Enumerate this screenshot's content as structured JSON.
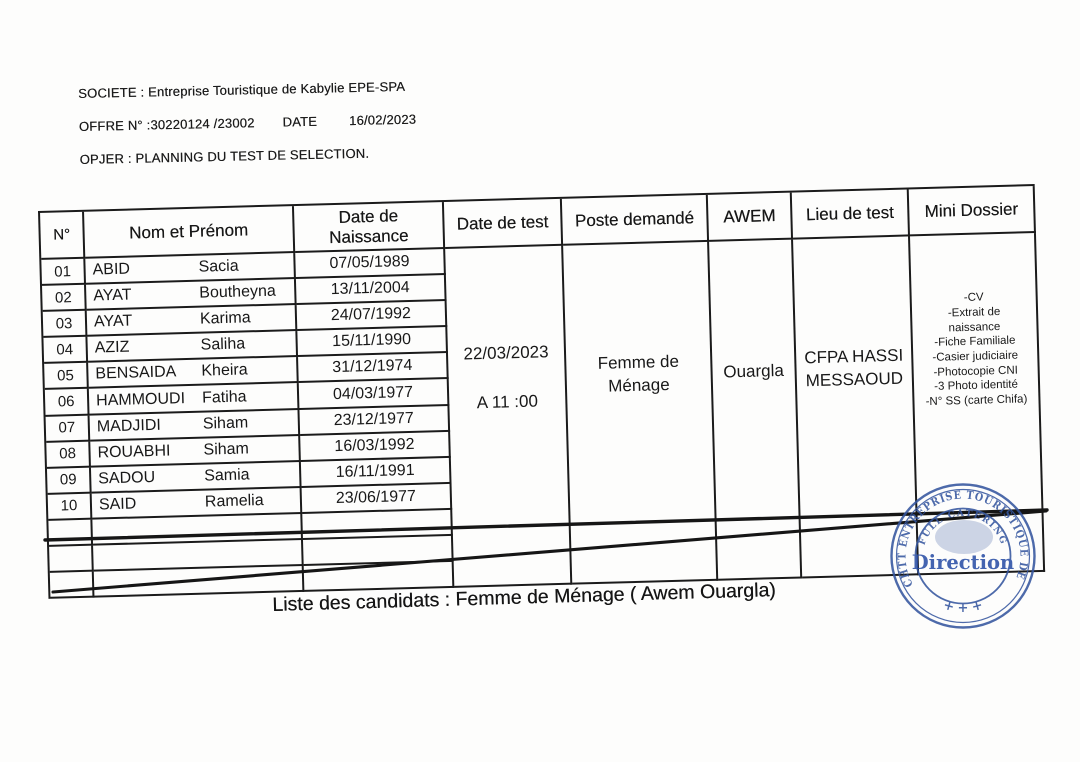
{
  "document": {
    "header": {
      "societe": "SOCIETE : Entreprise Touristique de Kabylie EPE-SPA",
      "offre": "OFFRE N° :30220124 /23002",
      "date_label": "DATE",
      "date_value": "16/02/2023",
      "objet": "OPJER : PLANNING DU TEST DE SELECTION."
    },
    "caption": "Liste des candidats : Femme de Ménage ( Awem Ouargla)"
  },
  "table": {
    "headers": {
      "num": "N°",
      "name": "Nom et Prénom",
      "dob_line1": "Date de",
      "dob_line2": "Naissance",
      "test_date": "Date de test",
      "poste": "Poste demandé",
      "awem": "AWEM",
      "lieu": "Lieu de test",
      "mini": "Mini Dossier"
    },
    "rows": [
      {
        "num": "01",
        "last": "ABID",
        "first": "Sacia",
        "dob": "07/05/1989"
      },
      {
        "num": "02",
        "last": "AYAT",
        "first": "Boutheyna",
        "dob": "13/11/2004"
      },
      {
        "num": "03",
        "last": "AYAT",
        "first": "Karima",
        "dob": "24/07/1992"
      },
      {
        "num": "04",
        "last": "AZIZ",
        "first": "Saliha",
        "dob": "15/11/1990"
      },
      {
        "num": "05",
        "last": "BENSAIDA",
        "first": "Kheira",
        "dob": "31/12/1974"
      },
      {
        "num": "06",
        "last": "HAMMOUDI",
        "first": "Fatiha",
        "dob": "04/03/1977"
      },
      {
        "num": "07",
        "last": "MADJIDI",
        "first": "Siham",
        "dob": "23/12/1977"
      },
      {
        "num": "08",
        "last": "ROUABHI",
        "first": "Siham",
        "dob": "16/03/1992"
      },
      {
        "num": "09",
        "last": "SADOU",
        "first": "Samia",
        "dob": "16/11/1991"
      },
      {
        "num": "10",
        "last": "SAID",
        "first": "Ramelia",
        "dob": "23/06/1977"
      }
    ],
    "empty_row_count": 3,
    "merged": {
      "test_date_line1": "22/03/2023",
      "test_date_line2": "A 11 :00",
      "poste_line1": "Femme de",
      "poste_line2": "Ménage",
      "awem": "Ouargla",
      "lieu_line1": "CFPA HASSI",
      "lieu_line2": "MESSAOUD",
      "mini_items": [
        "-CV",
        "-Extrait de naissance",
        "-Fiche Familiale",
        "-Casier judiciaire",
        "-Photocopie CNI",
        "-3 Photo identité",
        "-N° SS (carte Chifa)"
      ]
    }
  },
  "stamp": {
    "ring_text": "CHTT ENTREPRISE TOURISTIQUE DE KABYLIE",
    "inner_arc_text": "FULL CATERING",
    "center_text": "Direction",
    "bottom_marks": "+ + +",
    "color": "#35569f"
  }
}
